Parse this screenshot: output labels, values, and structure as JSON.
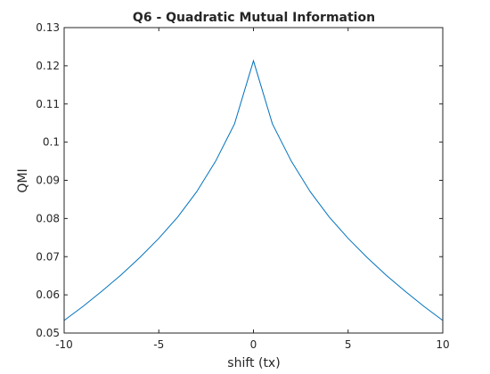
{
  "chart_data": {
    "type": "line",
    "title": "Q6 - Quadratic Mutual Information",
    "xlabel": "shift (tx)",
    "ylabel": "QMI",
    "xlim": [
      -10,
      10
    ],
    "ylim": [
      0.05,
      0.13
    ],
    "x_ticks": [
      -10,
      -5,
      0,
      5,
      10
    ],
    "x_tick_labels": [
      "-10",
      "-5",
      "0",
      "5",
      "10"
    ],
    "y_ticks": [
      0.05,
      0.06,
      0.07,
      0.08,
      0.09,
      0.1,
      0.11,
      0.12,
      0.13
    ],
    "y_tick_labels": [
      "0.05",
      "0.06",
      "0.07",
      "0.08",
      "0.09",
      "0.1",
      "0.11",
      "0.12",
      "0.13"
    ],
    "grid": false,
    "box": true,
    "line_color": "#0072bd",
    "series": [
      {
        "x": [
          -10,
          -9,
          -8,
          -7,
          -6,
          -5,
          -4,
          -3,
          -2,
          -1,
          0,
          1,
          2,
          3,
          4,
          5,
          6,
          7,
          8,
          9,
          10
        ],
        "y": [
          0.0533,
          0.057,
          0.061,
          0.0652,
          0.0698,
          0.0748,
          0.0804,
          0.087,
          0.095,
          0.1048,
          0.1213,
          0.1048,
          0.095,
          0.087,
          0.0804,
          0.0748,
          0.0698,
          0.0652,
          0.061,
          0.057,
          0.0533
        ]
      }
    ]
  }
}
